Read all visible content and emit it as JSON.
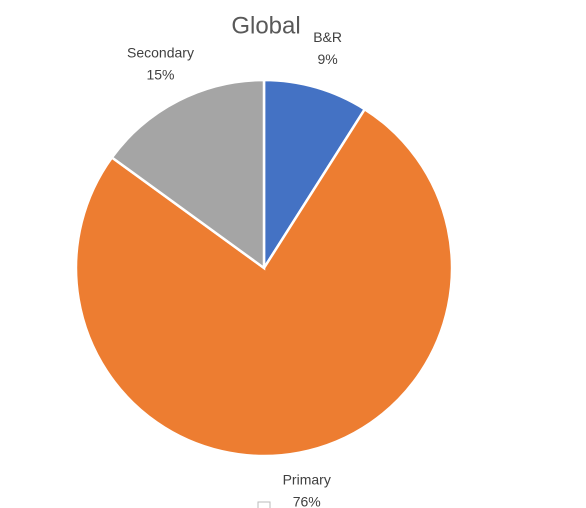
{
  "chart_data": {
    "type": "pie",
    "title": "Global",
    "categories": [
      "B&R",
      "Primary",
      "Secondary"
    ],
    "values": [
      9,
      76,
      15
    ],
    "value_labels": [
      "9%",
      "76%",
      "15%"
    ],
    "colors": [
      "#4472c4",
      "#ed7d31",
      "#a5a5a5"
    ]
  }
}
